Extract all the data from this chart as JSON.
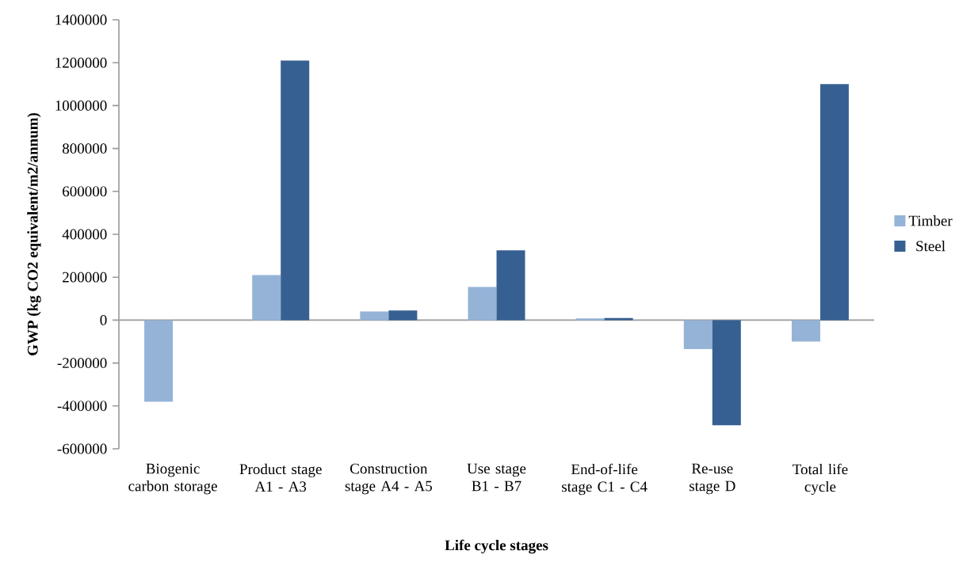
{
  "chart_data": {
    "type": "bar",
    "categories": [
      "Biogenic carbon storage",
      "Product stage A1 - A3",
      "Construction stage A4 - A5",
      "Use stage B1 - B7",
      "End-of-life stage C1 - C4",
      "Re-use stage D",
      "Total life cycle"
    ],
    "series": [
      {
        "name": "Timber",
        "color": "#95b3d7",
        "values": [
          -380000,
          210000,
          40000,
          155000,
          8000,
          -135000,
          -100000
        ]
      },
      {
        "name": "Steel",
        "color": "#366092",
        "values": [
          null,
          1210000,
          45000,
          325000,
          10000,
          -490000,
          1100000
        ]
      }
    ],
    "xlabel": "Life cycle stages",
    "ylabel": "GWP (kg CO2 equivalent/m2/annum)",
    "ylim": [
      -600000,
      1400000
    ],
    "yticks": [
      -600000,
      -400000,
      -200000,
      0,
      200000,
      400000,
      600000,
      800000,
      1000000,
      1200000,
      1400000
    ],
    "legend": "right"
  }
}
